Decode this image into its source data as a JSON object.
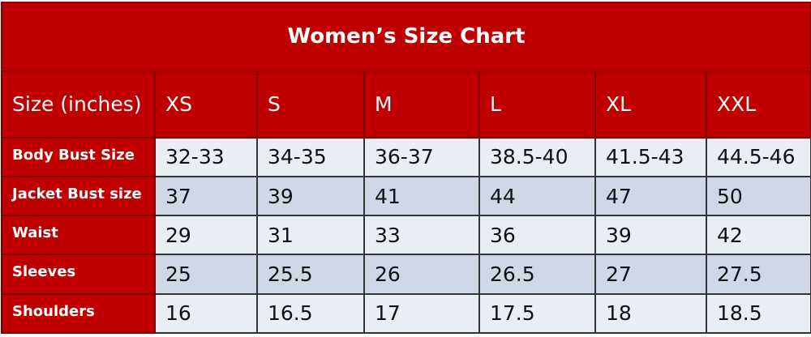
{
  "title": "Women’s Size Chart",
  "header": [
    "Size (inches)",
    "XS",
    "S",
    "M",
    "L",
    "XL",
    "XXL"
  ],
  "rows": [
    {
      "label": "Body Bust Size",
      "values": [
        "32-33",
        "34-35",
        "36-37",
        "38.5-40",
        "41.5-43",
        "44.5-46"
      ]
    },
    {
      "label": "Jacket Bust size",
      "values": [
        "37",
        "39",
        "41",
        "44",
        "47",
        "50"
      ]
    },
    {
      "label": "Waist",
      "values": [
        "29",
        "31",
        "33",
        "36",
        "39",
        "42"
      ]
    },
    {
      "label": "Sleeves",
      "values": [
        "25",
        "25.5",
        "26",
        "26.5",
        "27",
        "27.5"
      ]
    },
    {
      "label": "Shoulders",
      "values": [
        "16",
        "16.5",
        "17",
        "17.5",
        "18",
        "18.5"
      ]
    }
  ],
  "colors": {
    "header_red": "#c00000",
    "row_light": "#e9edf4",
    "row_dark": "#d0d8e8"
  }
}
